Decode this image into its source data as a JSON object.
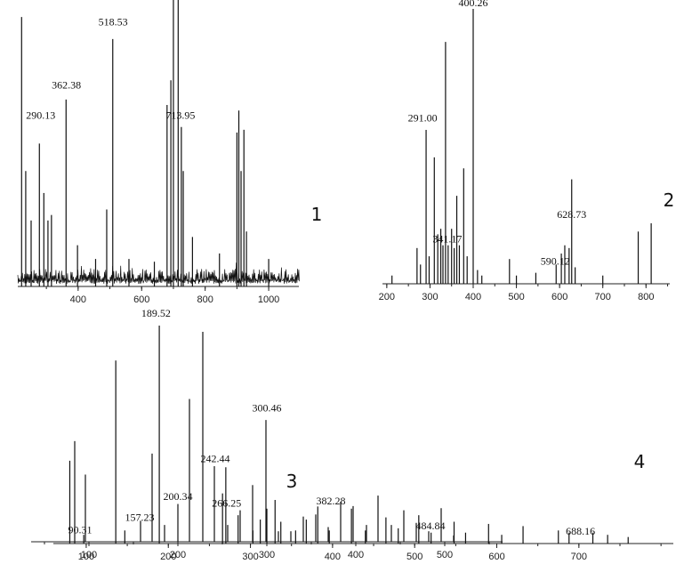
{
  "chart_data": [
    {
      "type": "line",
      "panel_label": "1",
      "xlim": [
        210,
        1095
      ],
      "ylim": [
        0,
        100
      ],
      "xticks": [
        400,
        600,
        800,
        1000
      ],
      "noise": true,
      "labels": [
        {
          "text": "290.13",
          "x": 282,
          "y": 61
        },
        {
          "text": "362.38",
          "x": 363,
          "y": 72
        },
        {
          "text": "518.53",
          "x": 510,
          "y": 95
        },
        {
          "text": "713.95",
          "x": 722,
          "y": 61
        }
      ],
      "peaks": [
        {
          "x": 222,
          "y": 98
        },
        {
          "x": 235,
          "y": 42
        },
        {
          "x": 252,
          "y": 24
        },
        {
          "x": 278,
          "y": 52
        },
        {
          "x": 292,
          "y": 34
        },
        {
          "x": 305,
          "y": 24
        },
        {
          "x": 316,
          "y": 26
        },
        {
          "x": 362,
          "y": 68
        },
        {
          "x": 398,
          "y": 15
        },
        {
          "x": 455,
          "y": 10
        },
        {
          "x": 490,
          "y": 28
        },
        {
          "x": 509,
          "y": 90
        },
        {
          "x": 560,
          "y": 10
        },
        {
          "x": 640,
          "y": 9
        },
        {
          "x": 680,
          "y": 66
        },
        {
          "x": 692,
          "y": 75
        },
        {
          "x": 700,
          "y": 128
        },
        {
          "x": 715,
          "y": 152
        },
        {
          "x": 725,
          "y": 58
        },
        {
          "x": 731,
          "y": 42
        },
        {
          "x": 760,
          "y": 18
        },
        {
          "x": 845,
          "y": 12
        },
        {
          "x": 900,
          "y": 56
        },
        {
          "x": 906,
          "y": 64
        },
        {
          "x": 913,
          "y": 42
        },
        {
          "x": 922,
          "y": 57
        },
        {
          "x": 930,
          "y": 20
        },
        {
          "x": 1000,
          "y": 10
        }
      ]
    },
    {
      "type": "line",
      "panel_label": "2",
      "xlim": [
        190,
        855
      ],
      "ylim": [
        0,
        100
      ],
      "xticks": [
        200,
        300,
        400,
        500,
        600,
        700,
        800
      ],
      "noise": false,
      "labels": [
        {
          "text": "291.00",
          "x": 283,
          "y": 59
        },
        {
          "text": "341.17",
          "x": 340,
          "y": 15
        },
        {
          "text": "400.26",
          "x": 400,
          "y": 101
        },
        {
          "text": "590.12",
          "x": 590,
          "y": 7
        },
        {
          "text": "628.73",
          "x": 628,
          "y": 24
        }
      ],
      "peaks": [
        {
          "x": 212,
          "y": 3
        },
        {
          "x": 270,
          "y": 13
        },
        {
          "x": 278,
          "y": 7
        },
        {
          "x": 291,
          "y": 56
        },
        {
          "x": 298,
          "y": 10
        },
        {
          "x": 310,
          "y": 46
        },
        {
          "x": 318,
          "y": 18
        },
        {
          "x": 325,
          "y": 20
        },
        {
          "x": 330,
          "y": 14
        },
        {
          "x": 336,
          "y": 88
        },
        {
          "x": 342,
          "y": 14
        },
        {
          "x": 350,
          "y": 20
        },
        {
          "x": 356,
          "y": 13
        },
        {
          "x": 362,
          "y": 32
        },
        {
          "x": 368,
          "y": 14
        },
        {
          "x": 378,
          "y": 42
        },
        {
          "x": 386,
          "y": 10
        },
        {
          "x": 400,
          "y": 100
        },
        {
          "x": 410,
          "y": 5
        },
        {
          "x": 420,
          "y": 3
        },
        {
          "x": 484,
          "y": 9
        },
        {
          "x": 500,
          "y": 3
        },
        {
          "x": 545,
          "y": 4
        },
        {
          "x": 592,
          "y": 7
        },
        {
          "x": 604,
          "y": 11
        },
        {
          "x": 612,
          "y": 14
        },
        {
          "x": 622,
          "y": 13
        },
        {
          "x": 628,
          "y": 38
        },
        {
          "x": 636,
          "y": 6
        },
        {
          "x": 700,
          "y": 3
        },
        {
          "x": 782,
          "y": 19
        },
        {
          "x": 812,
          "y": 22
        }
      ]
    },
    {
      "type": "line",
      "panel_label": "3",
      "xlim": [
        35,
        565
      ],
      "ylim": [
        0,
        100
      ],
      "xticks": [
        100,
        200,
        300,
        400,
        500
      ],
      "noise": false,
      "labels": [
        {
          "text": "90.31",
          "x": 90,
          "y": 4
        },
        {
          "text": "157.23",
          "x": 157,
          "y": 10
        },
        {
          "text": "200.34",
          "x": 200,
          "y": 20
        },
        {
          "text": "242.44",
          "x": 242,
          "y": 38
        },
        {
          "text": "300.46",
          "x": 300,
          "y": 62
        },
        {
          "text": "484.84",
          "x": 484,
          "y": 6
        }
      ],
      "peaks": [
        {
          "x": 96,
          "y": 32
        },
        {
          "x": 158,
          "y": 10
        },
        {
          "x": 171,
          "y": 42
        },
        {
          "x": 185,
          "y": 8
        },
        {
          "x": 200,
          "y": 18
        },
        {
          "x": 213,
          "y": 68
        },
        {
          "x": 228,
          "y": 100
        },
        {
          "x": 241,
          "y": 36
        },
        {
          "x": 256,
          "y": 8
        },
        {
          "x": 270,
          "y": 15
        },
        {
          "x": 284,
          "y": 27
        },
        {
          "x": 299,
          "y": 58
        },
        {
          "x": 313,
          "y": 5
        },
        {
          "x": 327,
          "y": 5
        },
        {
          "x": 341,
          "y": 12
        },
        {
          "x": 355,
          "y": 13
        },
        {
          "x": 369,
          "y": 7
        },
        {
          "x": 383,
          "y": 19
        },
        {
          "x": 397,
          "y": 17
        },
        {
          "x": 412,
          "y": 8
        },
        {
          "x": 425,
          "y": 22
        },
        {
          "x": 440,
          "y": 8
        },
        {
          "x": 454,
          "y": 15
        },
        {
          "x": 468,
          "y": 9
        },
        {
          "x": 482,
          "y": 5
        },
        {
          "x": 496,
          "y": 16
        },
        {
          "x": 510,
          "y": 3
        }
      ]
    },
    {
      "type": "line",
      "panel_label": "4",
      "xlim": [
        60,
        815
      ],
      "ylim": [
        0,
        100
      ],
      "xticks": [
        100,
        200,
        300,
        400,
        500,
        600,
        700
      ],
      "noise": false,
      "labels": [
        {
          "text": "189.52",
          "x": 185,
          "y": 104
        },
        {
          "text": "266.25",
          "x": 271,
          "y": 17
        },
        {
          "text": "382.28",
          "x": 398,
          "y": 18
        },
        {
          "text": "688.16",
          "x": 702,
          "y": 4
        }
      ],
      "peaks": [
        {
          "x": 80,
          "y": 38
        },
        {
          "x": 86,
          "y": 47
        },
        {
          "x": 97,
          "y": 4
        },
        {
          "x": 136,
          "y": 84
        },
        {
          "x": 147,
          "y": 6
        },
        {
          "x": 189,
          "y": 100
        },
        {
          "x": 266,
          "y": 23
        },
        {
          "x": 270,
          "y": 35
        },
        {
          "x": 285,
          "y": 13
        },
        {
          "x": 303,
          "y": 6
        },
        {
          "x": 312,
          "y": 11
        },
        {
          "x": 320,
          "y": 16
        },
        {
          "x": 330,
          "y": 20
        },
        {
          "x": 337,
          "y": 10
        },
        {
          "x": 355,
          "y": 6
        },
        {
          "x": 368,
          "y": 11
        },
        {
          "x": 382,
          "y": 17
        },
        {
          "x": 396,
          "y": 6
        },
        {
          "x": 423,
          "y": 16
        },
        {
          "x": 440,
          "y": 6
        },
        {
          "x": 465,
          "y": 12
        },
        {
          "x": 480,
          "y": 7
        },
        {
          "x": 505,
          "y": 13
        },
        {
          "x": 520,
          "y": 5
        },
        {
          "x": 548,
          "y": 10
        },
        {
          "x": 562,
          "y": 5
        },
        {
          "x": 590,
          "y": 9
        },
        {
          "x": 606,
          "y": 4
        },
        {
          "x": 632,
          "y": 8
        },
        {
          "x": 675,
          "y": 6
        },
        {
          "x": 688,
          "y": 5
        },
        {
          "x": 717,
          "y": 5
        },
        {
          "x": 735,
          "y": 4
        },
        {
          "x": 760,
          "y": 3
        }
      ]
    }
  ]
}
